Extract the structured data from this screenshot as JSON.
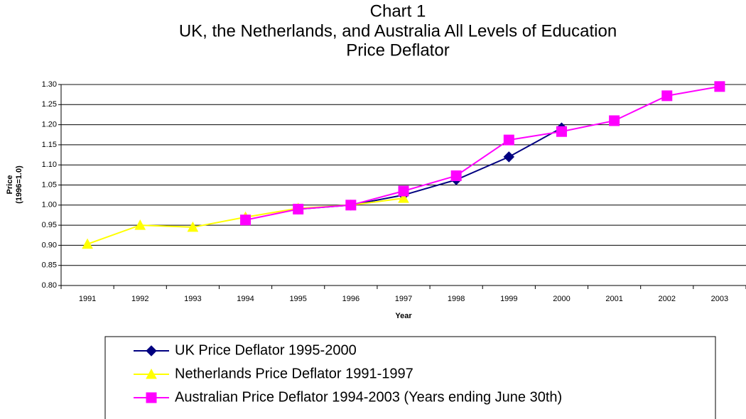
{
  "chart_data": {
    "type": "line",
    "title": [
      "Chart 1",
      "UK, the Netherlands, and Australia All Levels of Education",
      "Price Deflator"
    ],
    "xlabel": "Year",
    "ylabel": [
      "Price",
      "(1996=1.0)"
    ],
    "categories": [
      "1991",
      "1992",
      "1993",
      "1994",
      "1995",
      "1996",
      "1997",
      "1998",
      "1999",
      "2000",
      "2001",
      "2002",
      "2003"
    ],
    "ylim": [
      0.8,
      1.3
    ],
    "yticks": [
      {
        "value": 0.8,
        "label": "0.80"
      },
      {
        "value": 0.85,
        "label": "0.85"
      },
      {
        "value": 0.9,
        "label": "0.90"
      },
      {
        "value": 0.95,
        "label": "0.95"
      },
      {
        "value": 1.0,
        "label": "1.00"
      },
      {
        "value": 1.05,
        "label": "1.05"
      },
      {
        "value": 1.1,
        "label": "1.10"
      },
      {
        "value": 1.15,
        "label": "1.15"
      },
      {
        "value": 1.2,
        "label": "1.20"
      },
      {
        "value": 1.25,
        "label": "1.25"
      },
      {
        "value": 1.3,
        "label": "1.30"
      }
    ],
    "grid": true,
    "series": [
      {
        "name": "UK Price Deflator 1995-2000",
        "color": "#000080",
        "marker": "diamond",
        "values": [
          null,
          null,
          null,
          null,
          0.99,
          1.0,
          1.025,
          1.063,
          1.12,
          1.192,
          null,
          null,
          null
        ]
      },
      {
        "name": "Netherlands Price Deflator 1991-1997",
        "color": "#ffff00",
        "marker": "triangle",
        "values": [
          0.903,
          0.95,
          0.945,
          0.97,
          0.992,
          1.0,
          1.017,
          null,
          null,
          null,
          null,
          null,
          null
        ]
      },
      {
        "name": "Australian Price Deflator 1994-2003 (Years ending June 30th)",
        "color": "#ff00ff",
        "marker": "square",
        "values": [
          null,
          null,
          null,
          0.963,
          0.99,
          1.0,
          1.035,
          1.073,
          1.162,
          1.183,
          1.21,
          1.272,
          1.295
        ]
      }
    ]
  }
}
